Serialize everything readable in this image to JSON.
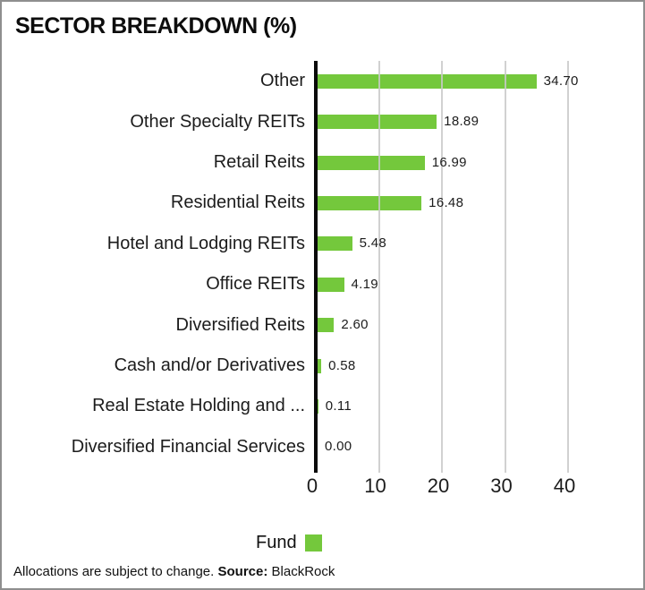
{
  "title": "SECTOR BREAKDOWN (%)",
  "chart_data": {
    "type": "bar",
    "orientation": "horizontal",
    "title": "SECTOR BREAKDOWN (%)",
    "categories": [
      "Other",
      "Other Specialty REITs",
      "Retail Reits",
      "Residential Reits",
      "Hotel and Lodging REITs",
      "Office REITs",
      "Diversified Reits",
      "Cash and/or Derivatives",
      "Real Estate Holding and ...",
      "Diversified Financial Services"
    ],
    "series": [
      {
        "name": "Fund",
        "values": [
          34.7,
          18.89,
          16.99,
          16.48,
          5.48,
          4.19,
          2.6,
          0.58,
          0.11,
          0.0
        ]
      }
    ],
    "value_labels": [
      "34.70",
      "18.89",
      "16.99",
      "16.48",
      "5.48",
      "4.19",
      "2.60",
      "0.58",
      "0.11",
      "0.00"
    ],
    "xlabel": "",
    "ylabel": "",
    "xlim": [
      0,
      45
    ],
    "xticks": [
      0,
      10,
      20,
      30,
      40
    ],
    "grid": "vertical-gridlines",
    "bar_color": "#74c83c",
    "axis_color": "#0a0a0a",
    "gridline_color": "#c9c9c9",
    "legend_position": "bottom"
  },
  "legend": {
    "label": "Fund",
    "swatch_color": "#74c83c"
  },
  "footer": {
    "text": "Allocations are subject to change. ",
    "source_label": "Source:",
    "source_value": " BlackRock"
  }
}
